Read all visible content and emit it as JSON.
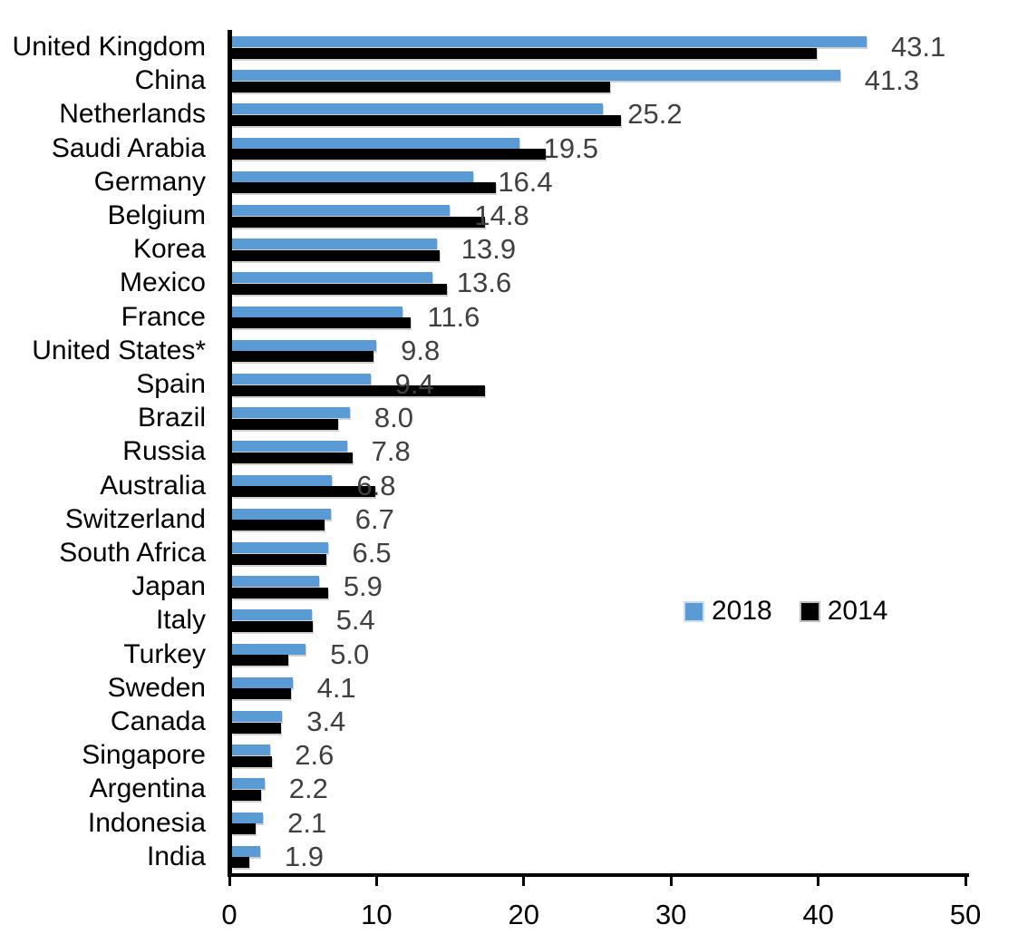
{
  "chart_data": {
    "type": "bar",
    "orientation": "horizontal",
    "title": "",
    "xlabel": "",
    "ylabel": "",
    "xlim": [
      0,
      50
    ],
    "x_tick_labels": [
      "0",
      "10",
      "20",
      "30",
      "40",
      "50"
    ],
    "x_tick_values": [
      0,
      10,
      20,
      30,
      40,
      50
    ],
    "grid": "off",
    "legend_position": "middle-right",
    "value_label_color": "#404040",
    "categories": [
      "United Kingdom",
      "China",
      "Netherlands",
      "Saudi Arabia",
      "Germany",
      "Belgium",
      "Korea",
      "Mexico",
      "France",
      "United States*",
      "Spain",
      "Brazil",
      "Russia",
      "Australia",
      "Switzerland",
      "South Africa",
      "Japan",
      "Italy",
      "Turkey",
      "Sweden",
      "Canada",
      "Singapore",
      "Argentina",
      "Indonesia",
      "India"
    ],
    "series": [
      {
        "name": "2018",
        "color": "#5B9BD5",
        "values": [
          43.1,
          41.3,
          25.2,
          19.5,
          16.4,
          14.8,
          13.9,
          13.6,
          11.6,
          9.8,
          9.4,
          8.0,
          7.8,
          6.8,
          6.7,
          6.5,
          5.9,
          5.4,
          5.0,
          4.1,
          3.4,
          2.6,
          2.2,
          2.1,
          1.9
        ]
      },
      {
        "name": "2014",
        "color": "#000000",
        "values": [
          39.7,
          25.7,
          26.4,
          21.3,
          17.9,
          17.2,
          14.1,
          14.6,
          12.1,
          9.6,
          17.2,
          7.2,
          8.2,
          9.7,
          6.3,
          6.4,
          6.5,
          5.5,
          3.8,
          4.0,
          3.3,
          2.7,
          2.0,
          1.6,
          1.2
        ]
      }
    ],
    "data_labels_2018": [
      "43.1",
      "41.3",
      "25.2",
      "19.5",
      "16.4",
      "14.8",
      "13.9",
      "13.6",
      "11.6",
      "9.8",
      "9.4",
      "8.0",
      "7.8",
      "6.8",
      "6.7",
      "6.5",
      "5.9",
      "5.4",
      "5.0",
      "4.1",
      "3.4",
      "2.6",
      "2.2",
      "2.1",
      "1.9"
    ]
  }
}
